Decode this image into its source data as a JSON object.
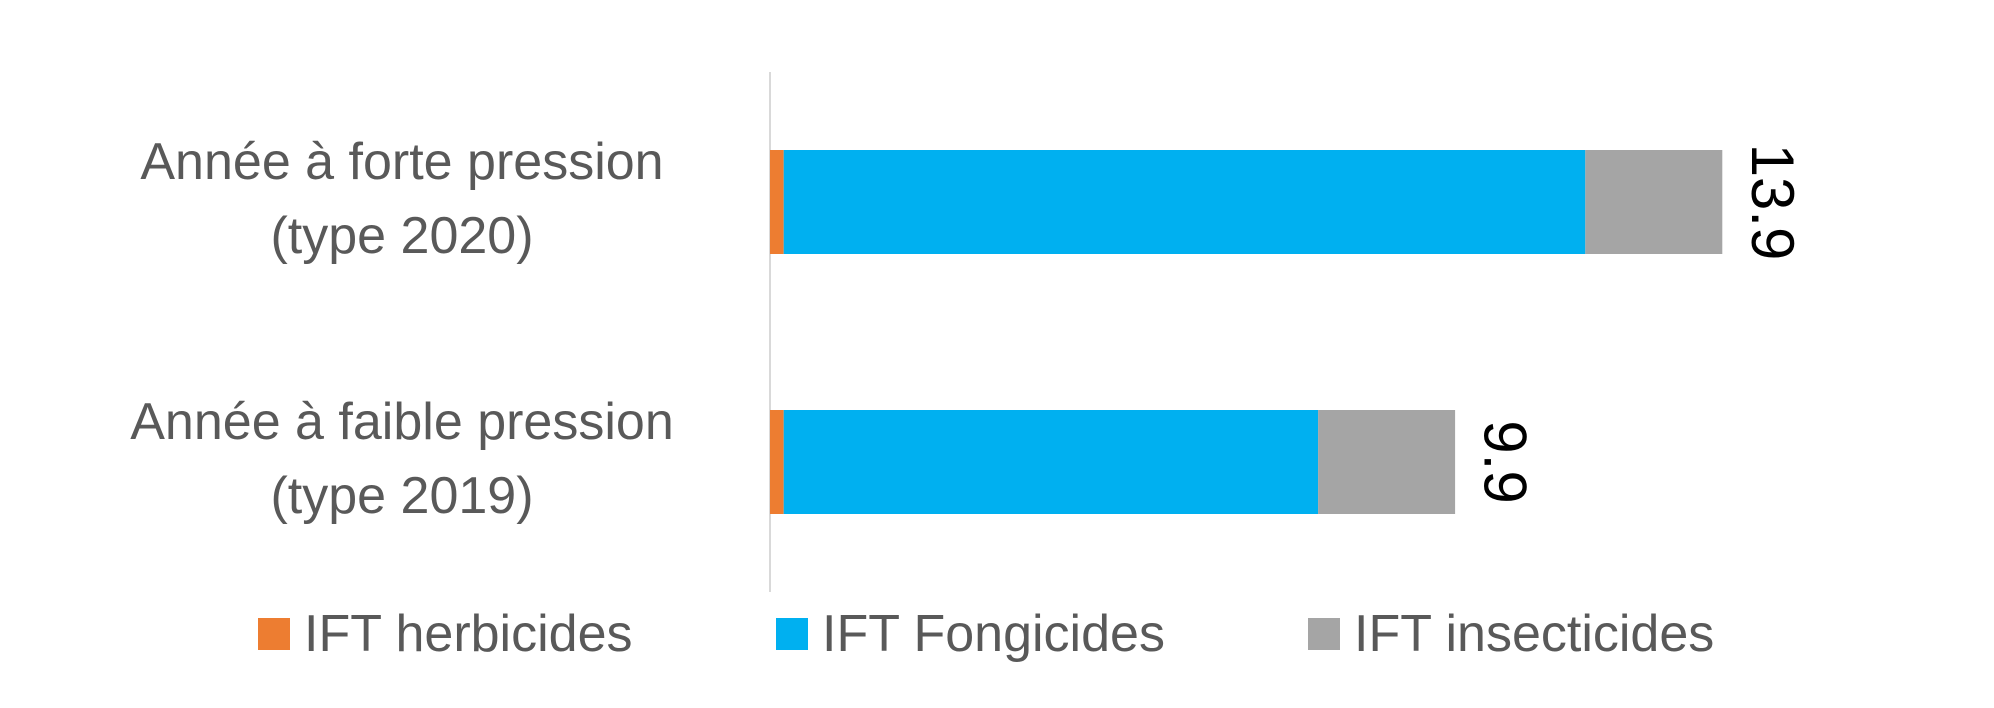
{
  "chart_data": {
    "type": "bar",
    "orientation": "horizontal",
    "stacked": true,
    "categories": [
      [
        "Année à forte pression",
        "(type 2020)"
      ],
      [
        "Année à faible pression",
        "(type 2019)"
      ]
    ],
    "series": [
      {
        "name": "IFT herbicides",
        "color": "#ed7d31",
        "values": [
          0.2,
          0.2
        ]
      },
      {
        "name": "IFT Fongicides",
        "color": "#00b0f0",
        "values": [
          11.7,
          7.8
        ]
      },
      {
        "name": "IFT insecticides",
        "color": "#a5a5a5",
        "values": [
          2.0,
          2.0
        ]
      }
    ],
    "totals": [
      "13.9",
      "9.9"
    ],
    "xlim": [
      0,
      20.9
    ],
    "legend_position": "bottom",
    "grid": false
  }
}
